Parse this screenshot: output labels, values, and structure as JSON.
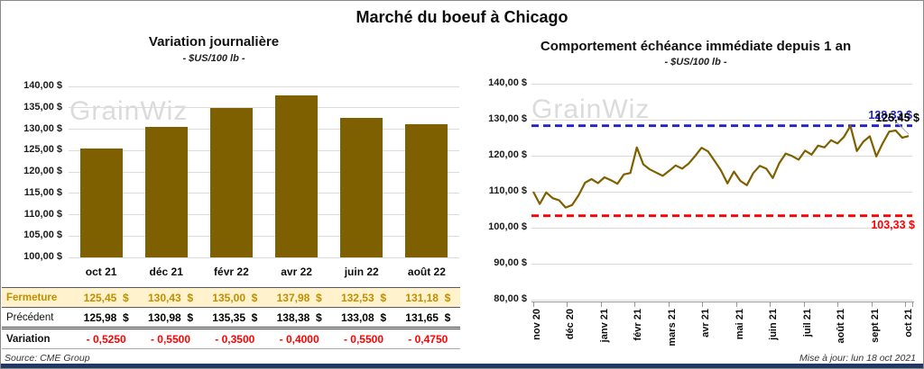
{
  "header": {
    "title": "Marché du boeuf à Chicago"
  },
  "watermark": "GrainWiz",
  "footer": {
    "source": "Source: CME Group",
    "updated": "Mise à jour: lun 18 oct 2021"
  },
  "colors": {
    "bar": "#7F6000",
    "line": "#7F6000",
    "high_dash": "#2020CC",
    "low_dash": "#FF0000",
    "negative": "#FF0000",
    "fermeture_bg": "#FFF2CC",
    "fermeture_text": "#BF8F00",
    "bottom_bar": "#1F3864"
  },
  "chart_data": [
    {
      "type": "bar",
      "title": "Variation journalière",
      "subtitle": "- $US/100 lb -",
      "categories": [
        "oct 21",
        "déc 21",
        "févr 22",
        "avr 22",
        "juin 22",
        "août 22"
      ],
      "values": [
        125.45,
        130.43,
        135.0,
        137.98,
        132.53,
        131.18
      ],
      "ylim": [
        100,
        140
      ],
      "ytick_step": 5,
      "ytick_labels": [
        "140,00 $",
        "135,00 $",
        "130,00 $",
        "125,00 $",
        "120,00 $",
        "115,00 $",
        "110,00 $",
        "105,00 $",
        "100,00 $"
      ],
      "bar_color": "#7F6000",
      "grid": true,
      "table": {
        "rows": [
          {
            "label": "Fermeture",
            "values": [
              "125,45  $",
              "130,43  $",
              "135,00  $",
              "137,98  $",
              "132,53  $",
              "131,18  $"
            ]
          },
          {
            "label": "Précédent",
            "values": [
              "125,98  $",
              "130,98  $",
              "135,35  $",
              "138,38  $",
              "133,08  $",
              "131,65  $"
            ]
          },
          {
            "label": "Variation",
            "values": [
              "- 0,5250",
              "- 0,5500",
              "- 0,3500",
              "- 0,4000",
              "- 0,5500",
              "- 0,4750"
            ]
          }
        ]
      }
    },
    {
      "type": "line",
      "title": "Comportement échéance immédiate depuis 1 an",
      "subtitle": "- $US/100 lb -",
      "x": [
        "nov 20",
        "déc 20",
        "janv 21",
        "févr 21",
        "mars 21",
        "avr 21",
        "mai 21",
        "juin 21",
        "juil 21",
        "août 21",
        "sept 21",
        "oct 21"
      ],
      "series": [
        {
          "name": "échéance immédiate",
          "values": [
            110.0,
            106.6,
            109.8,
            108.2,
            107.6,
            105.6,
            106.3,
            109.0,
            112.5,
            113.5,
            112.4,
            114.0,
            113.2,
            112.2,
            114.8,
            115.2,
            122.3,
            117.6,
            116.2,
            115.3,
            114.4,
            115.8,
            117.3,
            116.4,
            117.8,
            119.9,
            122.2,
            121.2,
            118.6,
            115.9,
            112.3,
            115.6,
            113.0,
            111.8,
            115.2,
            117.2,
            116.4,
            113.8,
            117.9,
            120.6,
            119.9,
            118.9,
            121.4,
            120.3,
            122.8,
            122.3,
            124.3,
            123.4,
            125.2,
            128.3,
            121.3,
            123.9,
            125.4,
            119.8,
            123.5,
            126.7,
            127.0,
            125.0,
            125.45
          ]
        }
      ],
      "ylim": [
        80,
        140
      ],
      "ytick_step": 10,
      "ytick_labels": [
        "140,00 $",
        "130,00 $",
        "120,00 $",
        "110,00 $",
        "100,00 $",
        "90,00 $",
        "80,00 $"
      ],
      "line_color": "#7F6000",
      "grid": true,
      "hlines": [
        {
          "value": 128.33,
          "label": "128,33 $",
          "color": "#2020CC"
        },
        {
          "value": 103.33,
          "label": "103,33 $",
          "color": "#FF0000"
        }
      ],
      "last_point_label": {
        "value": 125.45,
        "label": "125,45 $",
        "color": "#000000"
      }
    }
  ]
}
